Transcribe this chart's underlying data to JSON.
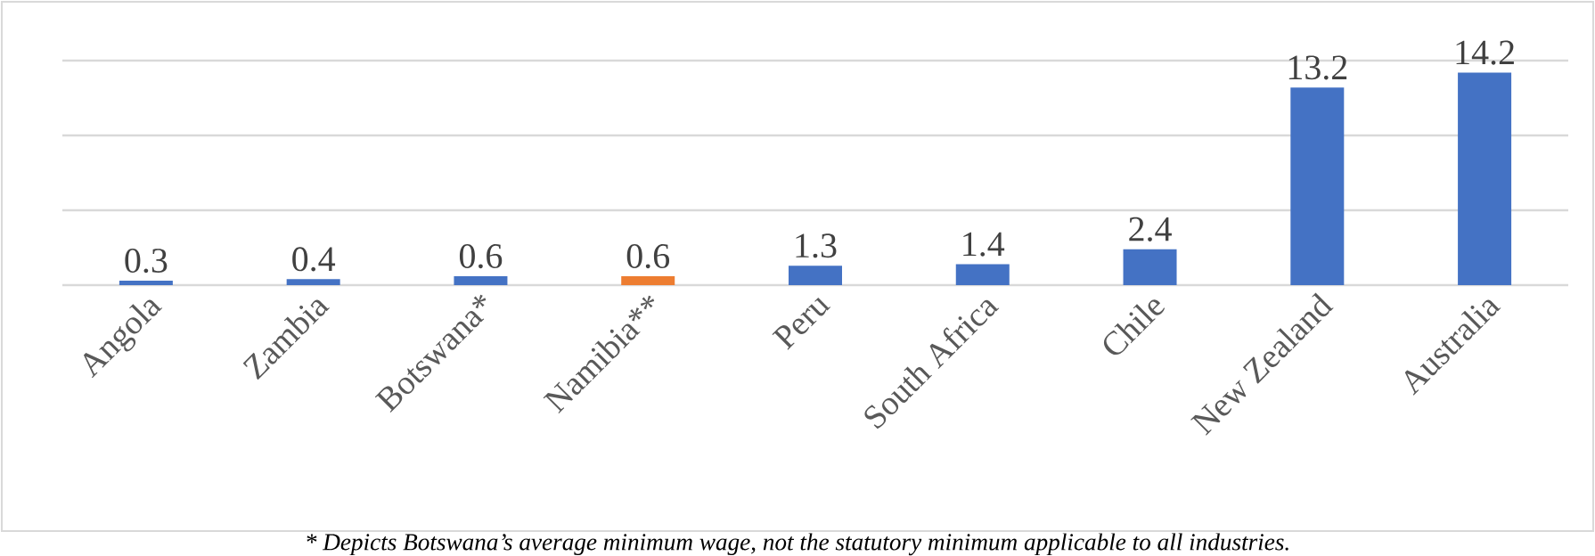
{
  "chart_data": {
    "type": "bar",
    "categories": [
      "Angola",
      "Zambia",
      "Botswana*",
      "Namibia**",
      "Peru",
      "South Africa",
      "Chile",
      "New Zealand",
      "Australia"
    ],
    "values": [
      0.3,
      0.4,
      0.6,
      0.6,
      1.3,
      1.4,
      2.4,
      13.2,
      14.2
    ],
    "colors": [
      "#4472c4",
      "#4472c4",
      "#4472c4",
      "#ed7d31",
      "#4472c4",
      "#4472c4",
      "#4472c4",
      "#4472c4",
      "#4472c4"
    ],
    "ylim": [
      0,
      15
    ],
    "yticks": [
      0,
      5,
      10,
      15
    ],
    "grid": "y",
    "tick_labels": "x",
    "data_labels": true,
    "annotations": [
      "*   Depicts Botswana’s average minimum wage, not the statutory minimum applicable to all industries."
    ]
  }
}
